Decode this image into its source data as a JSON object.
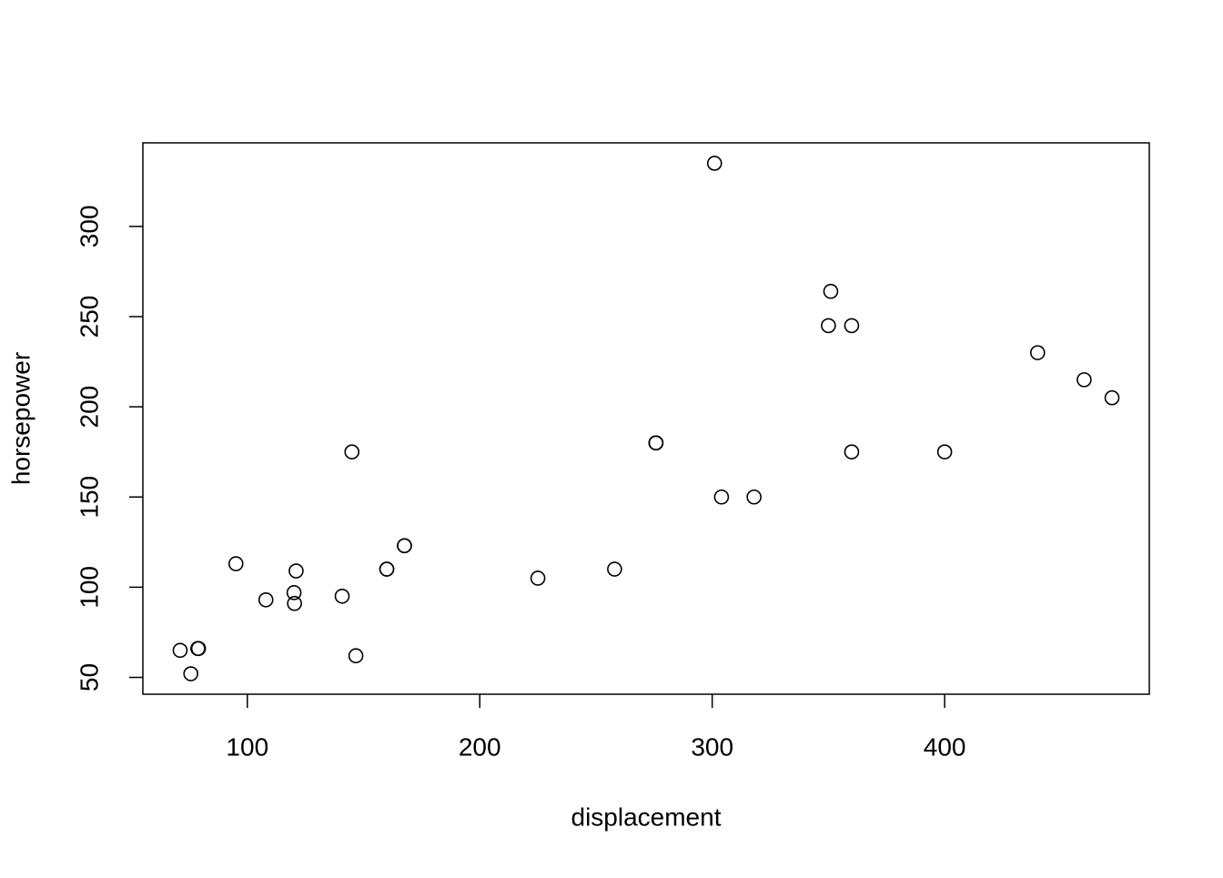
{
  "chart_data": {
    "type": "scatter",
    "x_label": "displacement",
    "y_label": "horsepower",
    "x": [
      160,
      160,
      108,
      258,
      360,
      225,
      360,
      146.7,
      140.8,
      167.6,
      167.6,
      275.8,
      275.8,
      275.8,
      472,
      460,
      440,
      78.7,
      75.7,
      71.1,
      120.1,
      318,
      304,
      350,
      400,
      79,
      120.3,
      95.1,
      351,
      145,
      301,
      121
    ],
    "values": [
      110,
      110,
      93,
      110,
      175,
      105,
      245,
      62,
      95,
      123,
      123,
      180,
      180,
      180,
      205,
      215,
      230,
      66,
      52,
      65,
      97,
      150,
      150,
      245,
      175,
      66,
      91,
      113,
      264,
      175,
      335,
      109
    ],
    "color": "#000000",
    "xlim": [
      55.064,
      488.036
    ],
    "ylim": [
      40.68,
      346.32
    ],
    "xticks": [
      100,
      200,
      300,
      400
    ],
    "yticks": [
      50,
      100,
      150,
      200,
      250,
      300
    ]
  }
}
